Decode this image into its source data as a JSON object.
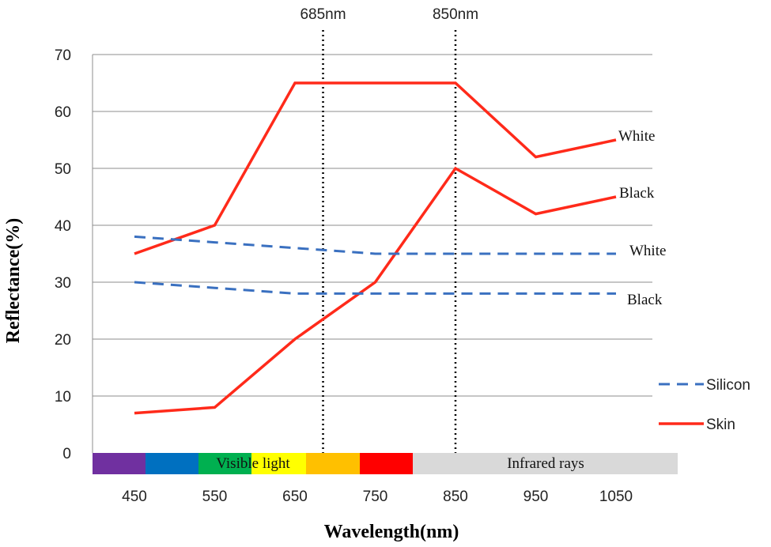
{
  "chart_data": {
    "type": "line",
    "x": [
      450,
      550,
      650,
      750,
      850,
      950,
      1050
    ],
    "xlabel": "Wavelength(nm)",
    "ylabel": "Reflectance(%)",
    "ylim": [
      0,
      70
    ],
    "yticks": [
      0,
      10,
      20,
      30,
      40,
      50,
      60,
      70
    ],
    "xtick_labels": [
      "450",
      "550",
      "650",
      "750",
      "850",
      "950",
      "1050"
    ],
    "grid": "horizontal",
    "series": [
      {
        "name": "Skin",
        "label": "White",
        "style": "solid",
        "color": "#ff2a1a",
        "values": [
          35,
          40,
          65,
          65,
          65,
          52,
          55
        ]
      },
      {
        "name": "Skin",
        "label": "Black",
        "style": "solid",
        "color": "#ff2a1a",
        "values": [
          7,
          8,
          20,
          30,
          50,
          42,
          45
        ]
      },
      {
        "name": "Silicon",
        "label": "White",
        "style": "dashed",
        "color": "#3a70c0",
        "values": [
          38,
          37,
          36,
          35,
          35,
          35,
          35
        ]
      },
      {
        "name": "Silicon",
        "label": "Black",
        "style": "dashed",
        "color": "#3a70c0",
        "values": [
          30,
          29,
          28,
          28,
          28,
          28,
          28
        ]
      }
    ],
    "reference_lines": [
      {
        "x": 685,
        "label": "685nm"
      },
      {
        "x": 850,
        "label": "850nm"
      }
    ],
    "spectrum_band": {
      "segments": [
        {
          "color": "#7030a0"
        },
        {
          "color": "#0070c0"
        },
        {
          "color": "#00b050"
        },
        {
          "color": "#ffff00"
        },
        {
          "color": "#ffc000"
        },
        {
          "color": "#ff0000"
        },
        {
          "color": "#d9d9d9"
        }
      ],
      "labels": [
        {
          "text": "Visible light"
        },
        {
          "text": "Infrared rays"
        }
      ]
    },
    "legend": {
      "position": "right",
      "entries": [
        {
          "name": "Silicon",
          "style": "dashed",
          "color": "#3a70c0"
        },
        {
          "name": "Skin",
          "style": "solid",
          "color": "#ff2a1a"
        }
      ]
    }
  }
}
